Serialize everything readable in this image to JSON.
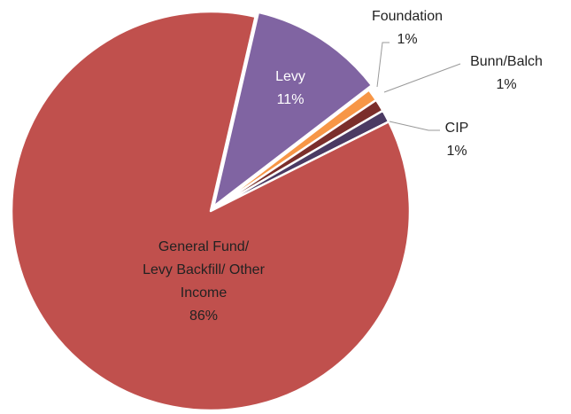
{
  "chart_data": {
    "type": "pie",
    "categories": [
      "General Fund/ Levy Backfill/ Other Income",
      "Levy",
      "Foundation",
      "Bunn/Balch",
      "CIP"
    ],
    "values": [
      86,
      11,
      1,
      1,
      1
    ],
    "value_labels": [
      "86%",
      "11%",
      "1%",
      "1%",
      "1%"
    ],
    "colors": [
      "#c0504d",
      "#8064a2",
      "#f79646",
      "#7b2e2b",
      "#4b3a63"
    ]
  }
}
